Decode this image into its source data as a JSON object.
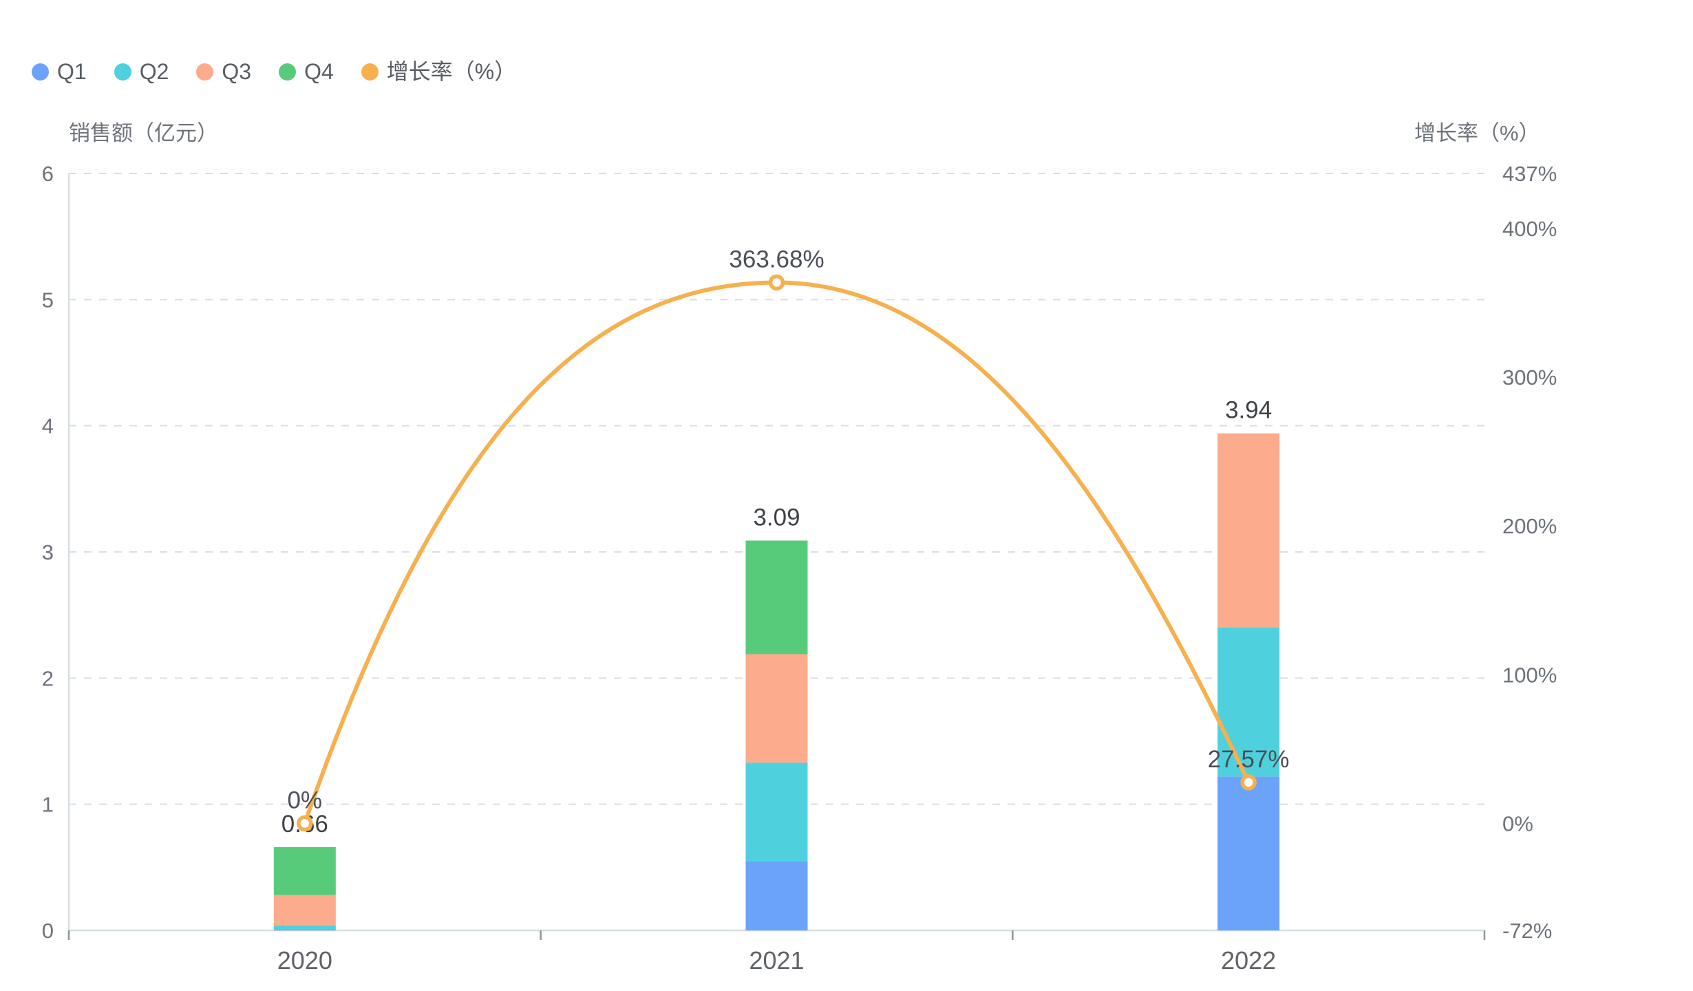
{
  "legend": {
    "items": [
      {
        "label": "Q1",
        "color": "#6ba3fa"
      },
      {
        "label": "Q2",
        "color": "#4fd0dd"
      },
      {
        "label": "Q3",
        "color": "#fcab8c"
      },
      {
        "label": "Q4",
        "color": "#57cb7a"
      },
      {
        "label": "增长率（%）",
        "color": "#f6b04e"
      }
    ]
  },
  "chart_data": {
    "type": "bar",
    "subtype": "stacked-bar-with-line",
    "categories": [
      "2020",
      "2021",
      "2022"
    ],
    "series": [
      {
        "name": "Q1",
        "type": "bar",
        "stack": "sales",
        "color": "#6ba3fa",
        "values": [
          0.01,
          0.55,
          1.22
        ]
      },
      {
        "name": "Q2",
        "type": "bar",
        "stack": "sales",
        "color": "#4fd0dd",
        "values": [
          0.03,
          0.78,
          1.18
        ]
      },
      {
        "name": "Q3",
        "type": "bar",
        "stack": "sales",
        "color": "#fcab8c",
        "values": [
          0.24,
          0.86,
          1.54
        ]
      },
      {
        "name": "Q4",
        "type": "bar",
        "stack": "sales",
        "color": "#57cb7a",
        "values": [
          0.38,
          0.9,
          0.0
        ]
      },
      {
        "name": "增长率（%）",
        "type": "line",
        "color": "#f6b04e",
        "values": [
          0,
          363.68,
          27.57
        ],
        "point_labels": [
          "0%",
          "363.68%",
          "27.57%"
        ]
      }
    ],
    "bar_total_labels": [
      "0.66",
      "3.09",
      "3.94"
    ],
    "left_axis": {
      "title": "销售额（亿元）",
      "min": 0,
      "max": 6,
      "interval": 1,
      "tick_labels": [
        "0",
        "1",
        "2",
        "3",
        "4",
        "5",
        "6"
      ]
    },
    "right_axis": {
      "title": "增长率（%）",
      "min": -72,
      "max": 437,
      "tick_values": [
        437,
        400,
        300,
        200,
        100,
        0,
        -72
      ],
      "tick_labels": [
        "437%",
        "400%",
        "300%",
        "200%",
        "100%",
        "0%",
        "-72%"
      ]
    },
    "x_axis": {
      "tick_labels": [
        "2020",
        "2021",
        "2022"
      ]
    },
    "grid": {
      "horizontal_dashed": true,
      "vertical": false
    },
    "legend_position": "top-left"
  },
  "colors": {
    "grid_line": "#d9deed",
    "axis_line": "#d6dedf",
    "axis_tick": "#8f9499",
    "tick_text": "#6d727a",
    "x_tick_text": "#5f6368",
    "bar_label_text": "#3e4247",
    "line_label_text": "#4b4f57",
    "background": "#ffffff"
  }
}
